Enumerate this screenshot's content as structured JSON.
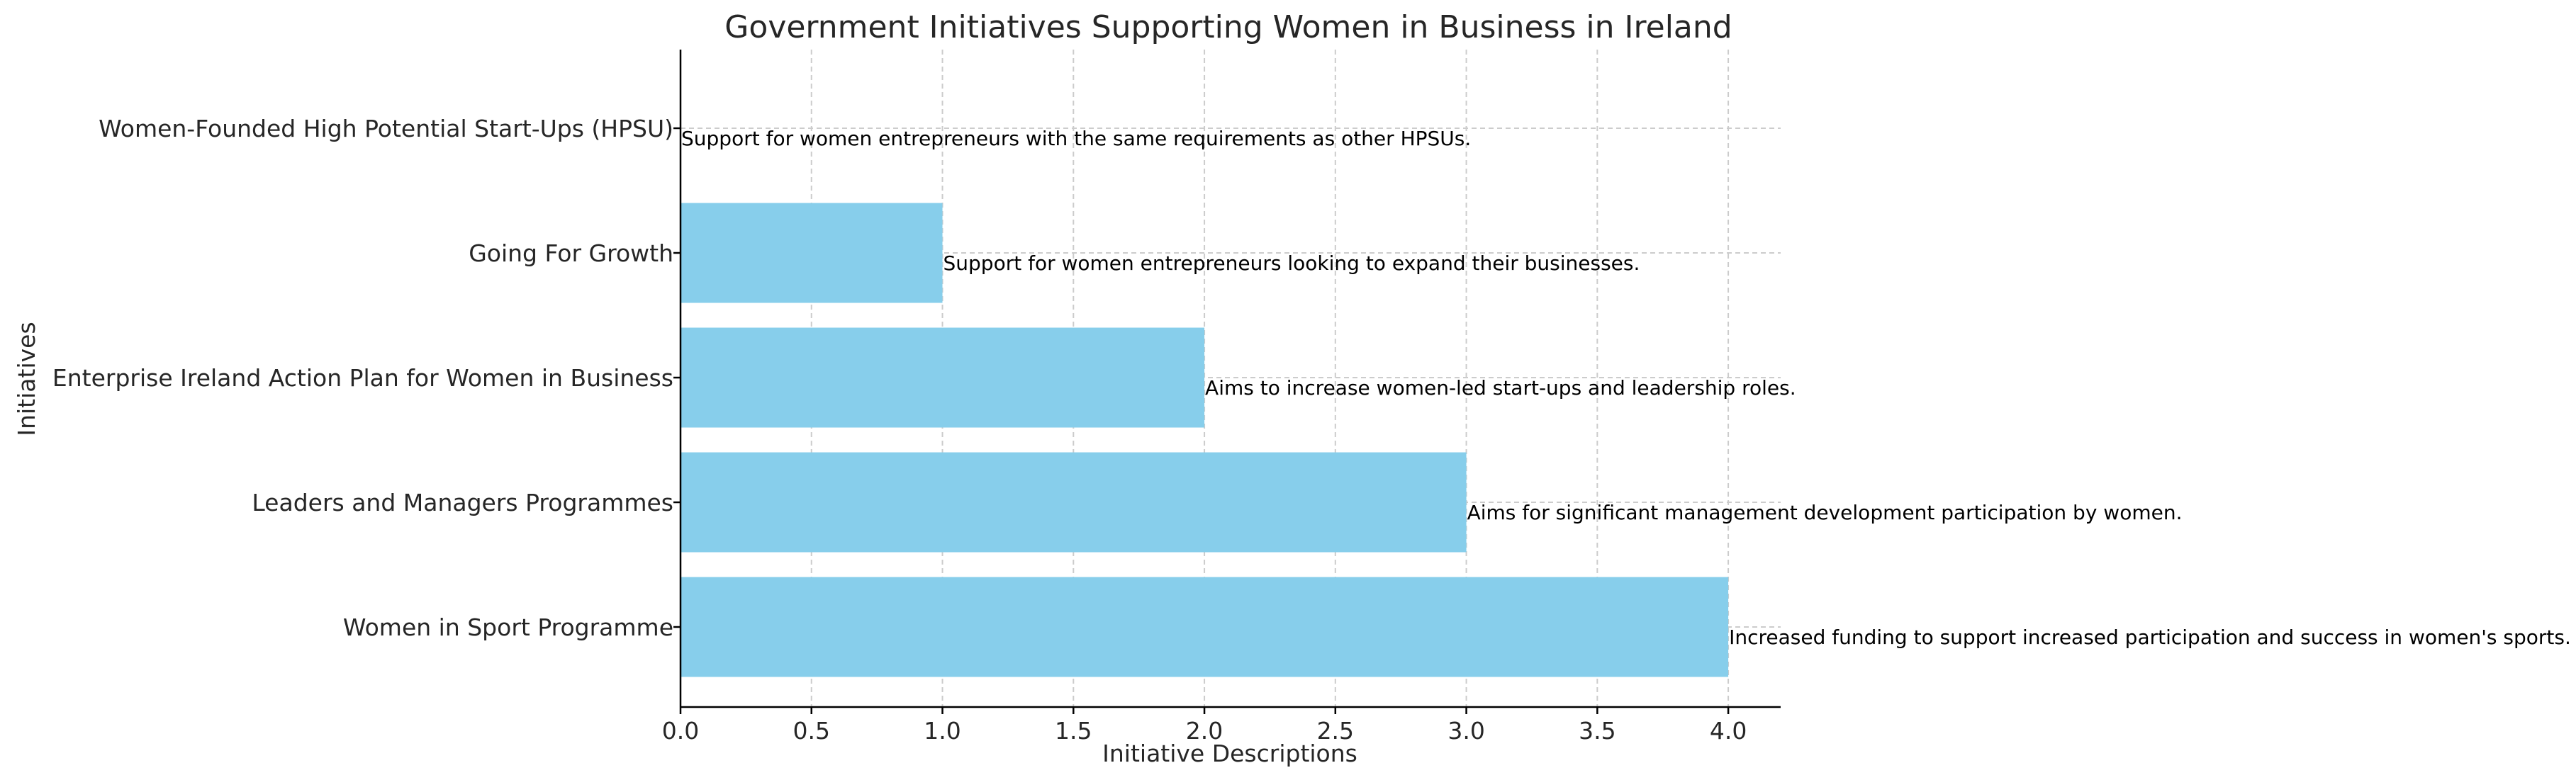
{
  "chart_data": {
    "type": "bar",
    "orientation": "horizontal",
    "title": "Government Initiatives Supporting Women in Business in Ireland",
    "xlabel": "Initiative Descriptions",
    "ylabel": "Initiatives",
    "xlim": [
      0,
      4.2
    ],
    "x_ticks": [
      "0.0",
      "0.5",
      "1.0",
      "1.5",
      "2.0",
      "2.5",
      "3.0",
      "3.5",
      "4.0"
    ],
    "grid": true,
    "bar_color": "#87ceeb",
    "categories": [
      "Women in Sport Programme",
      "Leaders and Managers Programmes",
      "Enterprise Ireland Action Plan for Women in Business",
      "Going For Growth",
      "Women-Founded High Potential Start-Ups (HPSU)"
    ],
    "values": [
      4,
      3,
      2,
      1,
      0
    ],
    "annotations": [
      "Increased funding to support increased participation and success in women's sports.",
      "Aims for significant management development participation by women.",
      "Aims to increase women-led start-ups and leadership roles.",
      "Support for women entrepreneurs looking to expand their businesses.",
      "Support for women entrepreneurs with the same requirements as other HPSUs."
    ]
  }
}
